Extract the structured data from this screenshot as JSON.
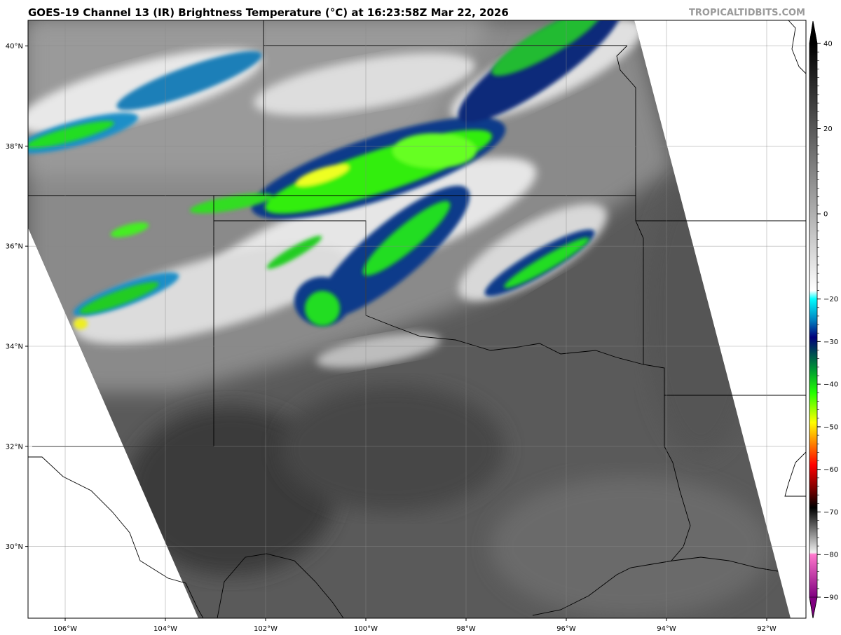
{
  "title": "GOES-19 Channel 13 (IR) Brightness Temperature (°C) at 16:23:58Z Mar 22, 2026",
  "watermark": "TROPICALTIDBITS.COM",
  "map": {
    "lat_labels": [
      {
        "lat": 40,
        "label": "40°N"
      },
      {
        "lat": 38,
        "label": "38°N"
      },
      {
        "lat": 36,
        "label": "36°N"
      },
      {
        "lat": 34,
        "label": "34°N"
      },
      {
        "lat": 32,
        "label": "32°N"
      },
      {
        "lat": 30,
        "label": "30°N"
      }
    ],
    "lon_labels": [
      {
        "lon": -106,
        "label": "106°W"
      },
      {
        "lon": -104,
        "label": "104°W"
      },
      {
        "lon": -102,
        "label": "102°W"
      },
      {
        "lon": -100,
        "label": "100°W"
      },
      {
        "lon": -98,
        "label": "98°W"
      },
      {
        "lon": -96,
        "label": "96°W"
      },
      {
        "lon": -94,
        "label": "94°W"
      },
      {
        "lon": -92,
        "label": "92°W"
      }
    ]
  },
  "colorbar": {
    "min": -90,
    "max": 40,
    "ticks": [
      {
        "value": 40,
        "label": "40"
      },
      {
        "value": 20,
        "label": "20"
      },
      {
        "value": 0,
        "label": "0"
      },
      {
        "value": -20,
        "label": "−20"
      },
      {
        "value": -30,
        "label": "−30"
      },
      {
        "value": -40,
        "label": "−40"
      },
      {
        "value": -50,
        "label": "−50"
      },
      {
        "value": -60,
        "label": "−60"
      },
      {
        "value": -70,
        "label": "−70"
      },
      {
        "value": -80,
        "label": "−80"
      },
      {
        "value": -90,
        "label": "−90"
      }
    ],
    "stops": [
      {
        "value": 40,
        "color": "#000000"
      },
      {
        "value": -18,
        "color": "#ffffff"
      },
      {
        "value": -20,
        "color": "#00ffff"
      },
      {
        "value": -25,
        "color": "#0080c0"
      },
      {
        "value": -29,
        "color": "#00007a"
      },
      {
        "value": -33,
        "color": "#005050"
      },
      {
        "value": -37,
        "color": "#00a030"
      },
      {
        "value": -42,
        "color": "#22ff00"
      },
      {
        "value": -49,
        "color": "#ffff00"
      },
      {
        "value": -54,
        "color": "#ff8000"
      },
      {
        "value": -59,
        "color": "#ff0000"
      },
      {
        "value": -65,
        "color": "#700000"
      },
      {
        "value": -69,
        "color": "#000000"
      },
      {
        "value": -79.5,
        "color": "#f0f0f0"
      },
      {
        "value": -80,
        "color": "#ff77cc"
      },
      {
        "value": -90,
        "color": "#800080"
      }
    ]
  }
}
